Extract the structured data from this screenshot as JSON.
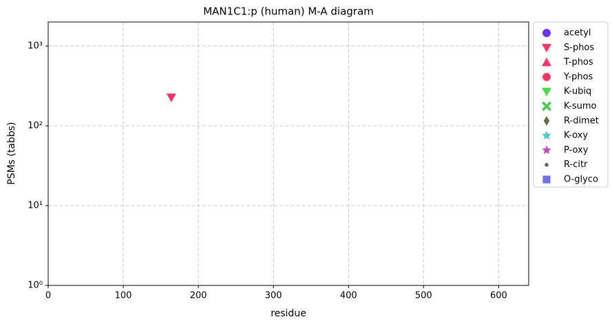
{
  "chart_data": {
    "type": "scatter",
    "title": "MAN1C1:p (human) M-A diagram",
    "x_label": "residue",
    "y_label": "PSMs (tabbs)",
    "xlim": [
      0,
      640
    ],
    "xticks": [
      0,
      100,
      200,
      300,
      400,
      500,
      600
    ],
    "ylim": [
      1,
      2000
    ],
    "y_scale": "log",
    "yticks": [
      {
        "value": 1,
        "label": "10⁰"
      },
      {
        "value": 10,
        "label": "10¹"
      },
      {
        "value": 100,
        "label": "10²"
      },
      {
        "value": 1000,
        "label": "10³"
      }
    ],
    "grid": true,
    "legend": "outside-right",
    "series": [
      {
        "name": "acetyl",
        "color": "#6633ee",
        "marker": "circle",
        "x": [],
        "values": []
      },
      {
        "name": "S-phos",
        "color": "#ff3366",
        "marker": "triangle-down",
        "x": [
          164
        ],
        "values": [
          227
        ]
      },
      {
        "name": "T-phos",
        "color": "#ff3366",
        "marker": "triangle-up",
        "x": [],
        "values": []
      },
      {
        "name": "Y-phos",
        "color": "#ff3366",
        "marker": "circle",
        "x": [],
        "values": []
      },
      {
        "name": "K-ubiq",
        "color": "#44dd44",
        "marker": "triangle-down",
        "x": [],
        "values": []
      },
      {
        "name": "K-sumo",
        "color": "#44cc44",
        "marker": "x",
        "x": [],
        "values": []
      },
      {
        "name": "R-dimet",
        "color": "#6b6b4b",
        "marker": "diamond",
        "x": [],
        "values": []
      },
      {
        "name": "K-oxy",
        "color": "#44cccc",
        "marker": "star",
        "x": [],
        "values": []
      },
      {
        "name": "P-oxy",
        "color": "#cc44cc",
        "marker": "star",
        "x": [],
        "values": []
      },
      {
        "name": "R-citr",
        "color": "#666666",
        "marker": "dot",
        "x": [],
        "values": []
      },
      {
        "name": "O-glyco",
        "color": "#7070ee",
        "marker": "square",
        "x": [],
        "values": []
      }
    ]
  }
}
